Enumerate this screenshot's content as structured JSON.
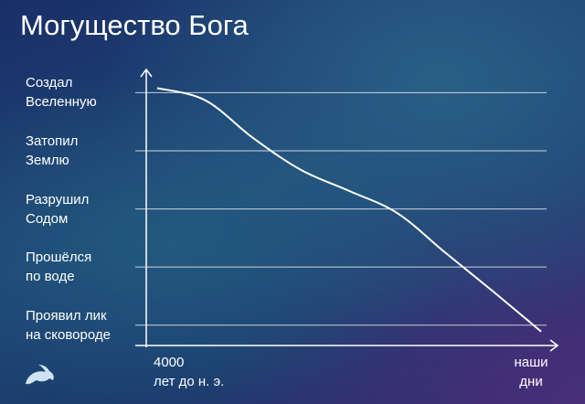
{
  "chart_data": {
    "type": "line",
    "title": "Могущество Бога",
    "categories": [
      "4000\nлет до н. э.",
      null,
      null,
      null,
      null,
      null,
      null,
      null,
      "наши\nдни"
    ],
    "values": [
      4.08,
      3.87,
      3.22,
      2.67,
      2.31,
      1.93,
      1.25,
      0.58,
      -0.11
    ],
    "color": "#ffffff",
    "ylim": [
      -0.35,
      4.4
    ],
    "yticks": [
      {
        "value": 0,
        "label": "Проявил лик\nна сковороде"
      },
      {
        "value": 1,
        "label": "Прошёлся\nпо воде"
      },
      {
        "value": 2,
        "label": "Разрушил\nСодом"
      },
      {
        "value": 3,
        "label": "Затопил\nЗемлю"
      },
      {
        "value": 4,
        "label": "Создал\nВселенную"
      }
    ],
    "grid": true
  }
}
